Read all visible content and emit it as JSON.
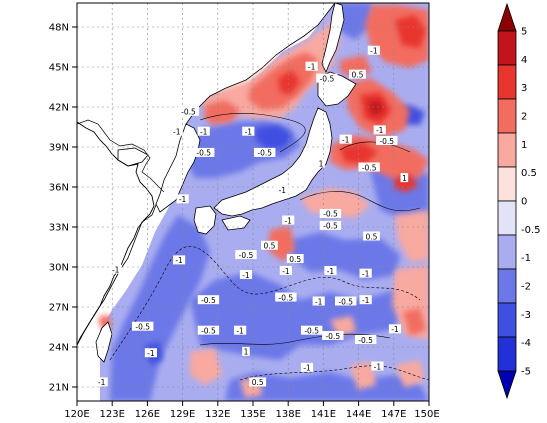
{
  "map": {
    "lat_ticks": [
      "21N",
      "24N",
      "27N",
      "30N",
      "33N",
      "36N",
      "39N",
      "42N",
      "45N",
      "48N"
    ],
    "lon_ticks": [
      "120E",
      "123E",
      "126E",
      "129E",
      "132E",
      "135E",
      "138E",
      "141E",
      "144E",
      "147E",
      "150E"
    ],
    "lat_range": [
      20,
      50
    ],
    "lon_range": [
      120,
      150
    ],
    "grid": "dashed"
  },
  "colorbar": {
    "labels": [
      "5",
      "4",
      "3",
      "2",
      "1",
      "0.5",
      "0",
      "-0.5",
      "-1",
      "-2",
      "-3",
      "-4",
      "-5"
    ],
    "colors": [
      "#8b0000",
      "#c1141c",
      "#e8362e",
      "#f26d60",
      "#f8a9a0",
      "#fde1dd",
      "#e3e3f7",
      "#a9adf0",
      "#6c78e8",
      "#3f50e0",
      "#2230d8",
      "#0000b0"
    ],
    "orientation": "vertical",
    "extend": "both"
  },
  "contour_labels": [
    {
      "text": "-0.5",
      "lon": 129.5,
      "lat": 41.8
    },
    {
      "text": "-1",
      "lon": 128.5,
      "lat": 40.3
    },
    {
      "text": "-1",
      "lon": 130.8,
      "lat": 40.3
    },
    {
      "text": "-1",
      "lon": 134.6,
      "lat": 40.3
    },
    {
      "text": "-0.5",
      "lon": 130.8,
      "lat": 38.7
    },
    {
      "text": "-0.5",
      "lon": 136.0,
      "lat": 38.7
    },
    {
      "text": "-0.5",
      "lon": 141.3,
      "lat": 44.3
    },
    {
      "text": "0.5",
      "lon": 143.9,
      "lat": 44.6
    },
    {
      "text": "-1",
      "lon": 145.3,
      "lat": 46.4
    },
    {
      "text": "-1",
      "lon": 140.0,
      "lat": 45.2
    },
    {
      "text": "-1",
      "lon": 145.8,
      "lat": 40.4
    },
    {
      "text": "-0.5",
      "lon": 146.4,
      "lat": 39.6
    },
    {
      "text": "-1",
      "lon": 142.9,
      "lat": 39.7
    },
    {
      "text": "1",
      "lon": 140.8,
      "lat": 37.9
    },
    {
      "text": "-0.5",
      "lon": 144.9,
      "lat": 37.6
    },
    {
      "text": "1",
      "lon": 147.9,
      "lat": 36.8
    },
    {
      "text": "-1",
      "lon": 129.0,
      "lat": 35.2
    },
    {
      "text": "-1",
      "lon": 137.5,
      "lat": 35.9
    },
    {
      "text": "-1",
      "lon": 138.0,
      "lat": 33.6
    },
    {
      "text": "-0.5",
      "lon": 141.6,
      "lat": 34.1
    },
    {
      "text": "-0.5",
      "lon": 141.6,
      "lat": 33.2
    },
    {
      "text": "0.5",
      "lon": 145.1,
      "lat": 32.4
    },
    {
      "text": "-0.5",
      "lon": 134.4,
      "lat": 31.0
    },
    {
      "text": "-1",
      "lon": 128.7,
      "lat": 30.6
    },
    {
      "text": "0.5",
      "lon": 136.4,
      "lat": 31.7
    },
    {
      "text": "0.5",
      "lon": 138.6,
      "lat": 30.7
    },
    {
      "text": "-1",
      "lon": 137.8,
      "lat": 29.8
    },
    {
      "text": "-1",
      "lon": 141.6,
      "lat": 29.8
    },
    {
      "text": "-1",
      "lon": 144.6,
      "lat": 29.6
    },
    {
      "text": "-1",
      "lon": 123.3,
      "lat": 29.9
    },
    {
      "text": "-1",
      "lon": 134.4,
      "lat": 29.5
    },
    {
      "text": "-0.5",
      "lon": 131.2,
      "lat": 27.6
    },
    {
      "text": "-0.5",
      "lon": 137.8,
      "lat": 27.8
    },
    {
      "text": "-1",
      "lon": 140.6,
      "lat": 27.5
    },
    {
      "text": "-0.5",
      "lon": 142.9,
      "lat": 27.5
    },
    {
      "text": "-1",
      "lon": 144.6,
      "lat": 27.6
    },
    {
      "text": "-0.5",
      "lon": 125.6,
      "lat": 25.6
    },
    {
      "text": "-0.5",
      "lon": 131.2,
      "lat": 25.3
    },
    {
      "text": "-1",
      "lon": 133.9,
      "lat": 25.3
    },
    {
      "text": "-0.5",
      "lon": 140.0,
      "lat": 25.3
    },
    {
      "text": "-0.5",
      "lon": 141.8,
      "lat": 24.9
    },
    {
      "text": "-1",
      "lon": 147.1,
      "lat": 25.4
    },
    {
      "text": "-0.5",
      "lon": 144.6,
      "lat": 24.6
    },
    {
      "text": "-1",
      "lon": 126.3,
      "lat": 23.6
    },
    {
      "text": "-1",
      "lon": 122.1,
      "lat": 21.4
    },
    {
      "text": "1",
      "lon": 134.4,
      "lat": 23.7
    },
    {
      "text": "-1",
      "lon": 139.6,
      "lat": 22.5
    },
    {
      "text": "-1",
      "lon": 145.6,
      "lat": 22.6
    },
    {
      "text": "0.5",
      "lon": 135.4,
      "lat": 21.4
    }
  ]
}
